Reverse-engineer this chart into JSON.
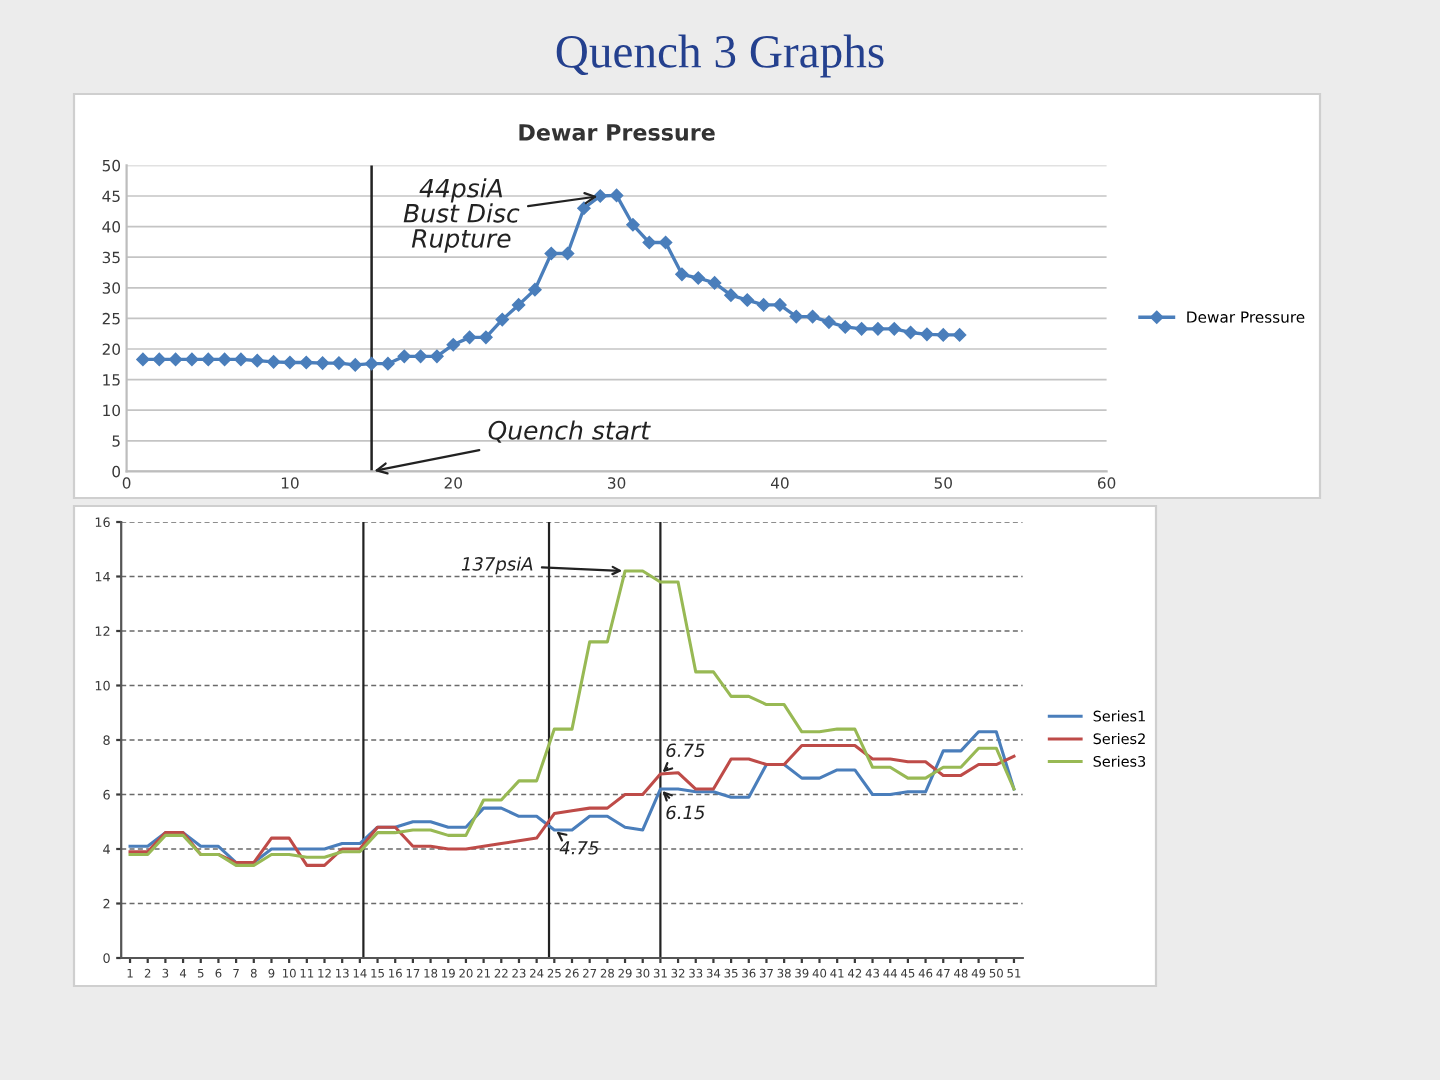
{
  "chart_data": [
    {
      "type": "line",
      "title": "Dewar Pressure",
      "x": [
        1,
        2,
        3,
        4,
        5,
        6,
        7,
        8,
        9,
        10,
        11,
        12,
        13,
        14,
        15,
        16,
        17,
        18,
        19,
        20,
        21,
        22,
        23,
        24,
        25,
        26,
        27,
        28,
        29,
        30,
        31,
        32,
        33,
        34,
        35,
        36,
        37,
        38,
        39,
        40,
        41,
        42,
        43,
        44,
        45,
        46,
        47,
        48,
        49,
        50,
        51
      ],
      "series": [
        {
          "name": "Dewar Pressure",
          "color": "#4a7ebb",
          "values": [
            18.3,
            18.3,
            18.3,
            18.3,
            18.3,
            18.3,
            18.3,
            18.1,
            17.9,
            17.8,
            17.8,
            17.7,
            17.7,
            17.4,
            17.6,
            17.6,
            18.8,
            18.8,
            18.8,
            20.7,
            21.9,
            21.9,
            24.8,
            27.2,
            29.7,
            35.6,
            35.6,
            43,
            45,
            45.1,
            40.3,
            37.4,
            37.4,
            32.2,
            31.6,
            30.8,
            28.8,
            28,
            27.2,
            27.2,
            25.3,
            25.3,
            24.4,
            23.6,
            23.3,
            23.3,
            23.3,
            22.7,
            22.4,
            22.3,
            22.3
          ]
        }
      ],
      "xlim": [
        0,
        60
      ],
      "xticks": [
        0,
        10,
        20,
        30,
        40,
        50,
        60
      ],
      "ylim": [
        0,
        50
      ],
      "yticks": [
        0,
        5,
        10,
        15,
        20,
        25,
        30,
        35,
        40,
        45,
        50
      ],
      "grid": "y",
      "legend": "right",
      "marker": "diamond",
      "ref_lines": [
        {
          "axis": "x",
          "value": 15,
          "color": "#222222"
        }
      ],
      "annotations": [
        "Quench 3 Graphs",
        {
          "text": "44psiA\nBust Disc\nRupture",
          "x": 29,
          "y": 45
        },
        {
          "text": "Quench start",
          "x": 15,
          "y": 0
        }
      ]
    },
    {
      "type": "line",
      "x": [
        1,
        2,
        3,
        4,
        5,
        6,
        7,
        8,
        9,
        10,
        11,
        12,
        13,
        14,
        15,
        16,
        17,
        18,
        19,
        20,
        21,
        22,
        23,
        24,
        25,
        26,
        27,
        28,
        29,
        30,
        31,
        32,
        33,
        34,
        35,
        36,
        37,
        38,
        39,
        40,
        41,
        42,
        43,
        44,
        45,
        46,
        47,
        48,
        49,
        50,
        51
      ],
      "series": [
        {
          "name": "Series1",
          "color": "#4a7ebb",
          "values": [
            4.1,
            4.1,
            4.6,
            4.6,
            4.1,
            4.1,
            3.5,
            3.5,
            4.0,
            4.0,
            4.0,
            4.0,
            4.2,
            4.2,
            4.8,
            4.8,
            5.0,
            5.0,
            4.8,
            4.8,
            5.5,
            5.5,
            5.2,
            5.2,
            4.7,
            4.7,
            5.2,
            5.2,
            4.8,
            4.7,
            6.2,
            6.2,
            6.1,
            6.1,
            5.9,
            5.9,
            7.1,
            7.1,
            6.6,
            6.6,
            6.9,
            6.9,
            6.0,
            6.0,
            6.1,
            6.1,
            7.6,
            7.6,
            8.3,
            8.3,
            6.2
          ]
        },
        {
          "name": "Series2",
          "color": "#be4b48",
          "values": [
            3.9,
            3.9,
            4.6,
            4.6,
            3.8,
            3.8,
            3.5,
            3.5,
            4.4,
            4.4,
            3.4,
            3.4,
            4.0,
            4.0,
            4.8,
            4.8,
            4.1,
            4.1,
            4.0,
            4.0,
            4.1,
            4.2,
            4.3,
            4.4,
            5.3,
            5.4,
            5.5,
            5.5,
            6.0,
            6.0,
            6.75,
            6.8,
            6.2,
            6.2,
            7.3,
            7.3,
            7.1,
            7.1,
            7.8,
            7.8,
            7.8,
            7.8,
            7.3,
            7.3,
            7.2,
            7.2,
            6.7,
            6.7,
            7.1,
            7.1,
            7.4
          ]
        },
        {
          "name": "Series3",
          "color": "#98b954",
          "values": [
            3.8,
            3.8,
            4.5,
            4.5,
            3.8,
            3.8,
            3.4,
            3.4,
            3.8,
            3.8,
            3.7,
            3.7,
            3.9,
            3.9,
            4.6,
            4.6,
            4.7,
            4.7,
            4.5,
            4.5,
            5.8,
            5.8,
            6.5,
            6.5,
            8.4,
            8.4,
            11.6,
            11.6,
            14.2,
            14.2,
            13.8,
            13.8,
            10.5,
            10.5,
            9.6,
            9.6,
            9.3,
            9.3,
            8.3,
            8.3,
            8.4,
            8.4,
            7.0,
            7.0,
            6.6,
            6.6,
            7.0,
            7.0,
            7.7,
            7.7,
            6.2
          ]
        }
      ],
      "xlim": [
        0.5,
        51.5
      ],
      "xticks": [
        1,
        2,
        3,
        4,
        5,
        6,
        7,
        8,
        9,
        10,
        11,
        12,
        13,
        14,
        15,
        16,
        17,
        18,
        19,
        20,
        21,
        22,
        23,
        24,
        25,
        26,
        27,
        28,
        29,
        30,
        31,
        32,
        33,
        34,
        35,
        36,
        37,
        38,
        39,
        40,
        41,
        42,
        43,
        44,
        45,
        46,
        47,
        48,
        49,
        50,
        51
      ],
      "ylim": [
        0,
        16
      ],
      "yticks": [
        0,
        2,
        4,
        6,
        8,
        10,
        12,
        14,
        16
      ],
      "grid": "y",
      "legend": "right",
      "ref_lines": [
        {
          "axis": "x",
          "value": 14.2,
          "color": "#222222"
        },
        {
          "axis": "x",
          "value": 24.7,
          "color": "#222222"
        },
        {
          "axis": "x",
          "value": 31,
          "color": "#222222"
        }
      ],
      "annotations": [
        {
          "text": "137psiA",
          "x": 29,
          "y": 14.2
        },
        {
          "text": "6.75",
          "x": 31,
          "y": 6.75
        },
        {
          "text": "6.15",
          "x": 31,
          "y": 6.2
        },
        {
          "text": "4.75",
          "x": 25,
          "y": 4.7
        }
      ]
    }
  ]
}
